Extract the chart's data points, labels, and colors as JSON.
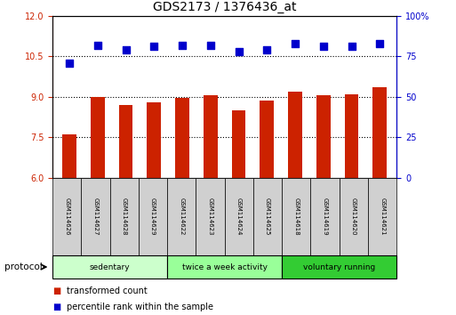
{
  "title": "GDS2173 / 1376436_at",
  "samples": [
    "GSM114626",
    "GSM114627",
    "GSM114628",
    "GSM114629",
    "GSM114622",
    "GSM114623",
    "GSM114624",
    "GSM114625",
    "GSM114618",
    "GSM114619",
    "GSM114620",
    "GSM114621"
  ],
  "transformed_count": [
    7.6,
    9.0,
    8.7,
    8.8,
    8.95,
    9.05,
    8.5,
    8.85,
    9.2,
    9.05,
    9.1,
    9.35
  ],
  "percentile_rank": [
    71,
    82,
    79,
    81,
    82,
    82,
    78,
    79,
    83,
    81,
    81,
    83
  ],
  "bar_color": "#cc2200",
  "dot_color": "#0000cc",
  "ylim_left": [
    6,
    12
  ],
  "ylim_right": [
    0,
    100
  ],
  "yticks_left": [
    6,
    7.5,
    9,
    10.5,
    12
  ],
  "yticks_right": [
    0,
    25,
    50,
    75,
    100
  ],
  "groups": [
    {
      "label": "sedentary",
      "indices": [
        0,
        1,
        2,
        3
      ],
      "color": "#ccffcc"
    },
    {
      "label": "twice a week activity",
      "indices": [
        4,
        5,
        6,
        7
      ],
      "color": "#99ff99"
    },
    {
      "label": "voluntary running",
      "indices": [
        8,
        9,
        10,
        11
      ],
      "color": "#33cc33"
    }
  ],
  "protocol_label": "protocol",
  "legend_items": [
    {
      "color": "#cc2200",
      "label": "transformed count"
    },
    {
      "color": "#0000cc",
      "label": "percentile rank within the sample"
    }
  ],
  "axis_label_color_left": "#cc2200",
  "axis_label_color_right": "#0000cc",
  "bar_width": 0.5,
  "dot_size": 30
}
